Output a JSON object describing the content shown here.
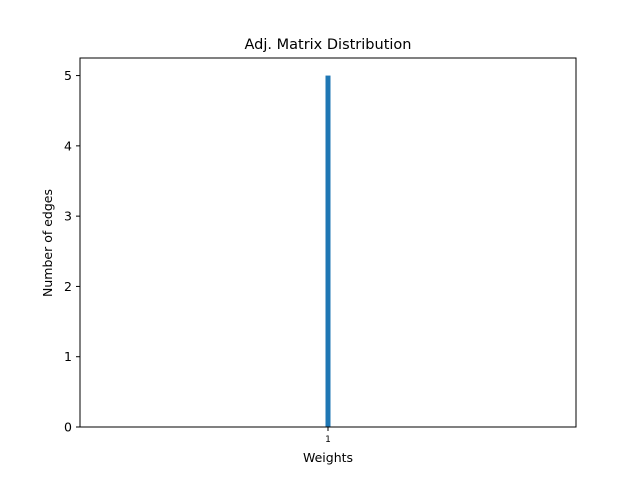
{
  "chart_data": {
    "type": "bar",
    "title": "Adj. Matrix Distribution",
    "xlabel": "Weights",
    "ylabel": "Number of edges",
    "categories": [
      "1"
    ],
    "values": [
      5
    ],
    "xlim": [
      0.5,
      1.5
    ],
    "ylim": [
      0,
      5.25
    ],
    "yticks": [
      0,
      1,
      2,
      3,
      4,
      5
    ],
    "xticks": [
      "1"
    ],
    "grid": false,
    "legend": "none",
    "colors": {
      "bar": "#1f77b4",
      "axes": "#000000",
      "background": "#ffffff"
    }
  }
}
